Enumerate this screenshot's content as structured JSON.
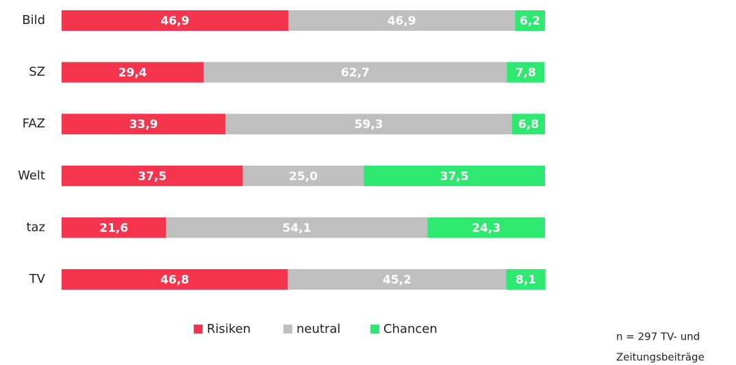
{
  "chart_data": {
    "type": "stacked_bar_horizontal",
    "categories": [
      "Bild",
      "SZ",
      "FAZ",
      "Welt",
      "taz",
      "TV"
    ],
    "series": [
      {
        "name": "Risiken",
        "color": "#f5344e",
        "values": [
          46.9,
          29.4,
          33.9,
          37.5,
          21.6,
          46.8
        ],
        "value_labels": [
          "46,9",
          "29,4",
          "33,9",
          "37,5",
          "21,6",
          "46,8"
        ]
      },
      {
        "name": "neutral",
        "color": "#bfbfbf",
        "values": [
          46.9,
          62.7,
          59.3,
          25.0,
          54.1,
          45.2
        ],
        "value_labels": [
          "46,9",
          "62,7",
          "59,3",
          "25,0",
          "54,1",
          "45,2"
        ]
      },
      {
        "name": "Chancen",
        "color": "#2ee870",
        "values": [
          6.2,
          7.8,
          6.8,
          37.5,
          24.3,
          8.1
        ],
        "value_labels": [
          "6,2",
          "7,8",
          "6,8",
          "37,5",
          "24,3",
          "8,1"
        ]
      }
    ],
    "xlim": [
      0,
      100
    ],
    "legend": "bottom",
    "note": [
      "n = 297 TV- und",
      "Zeitungsbeiträge"
    ]
  }
}
